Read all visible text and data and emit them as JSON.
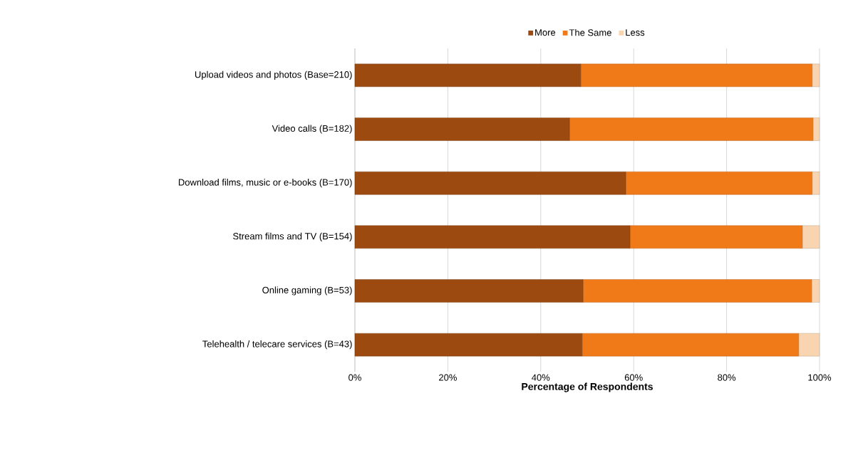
{
  "chart_data": {
    "type": "bar",
    "orientation": "horizontal",
    "stacked": true,
    "xlabel": "Percentage of Respondents",
    "categories": [
      "Upload videos and photos (Base=210)",
      "Video calls (B=182)",
      "Download films, music or e-books (B=170)",
      "Stream films and TV (B=154)",
      "Online gaming (B=53)",
      "Telehealth / telecare services (B=43)"
    ],
    "series": [
      {
        "name": "More",
        "color": "#9c4a10",
        "values": [
          48.6,
          46.2,
          58.3,
          59.2,
          49.1,
          48.9
        ]
      },
      {
        "name": "The Same",
        "color": "#f07a18",
        "values": [
          49.8,
          52.4,
          40.1,
          37.1,
          49.2,
          46.6
        ]
      },
      {
        "name": "Less",
        "color": "#f8d4b0",
        "values": [
          1.6,
          1.4,
          1.6,
          3.7,
          1.7,
          4.5
        ]
      }
    ],
    "xlim": [
      0,
      100
    ],
    "xticks": [
      {
        "value": 0,
        "label": "0%"
      },
      {
        "value": 20,
        "label": "20%"
      },
      {
        "value": 40,
        "label": "40%"
      },
      {
        "value": 60,
        "label": "60%"
      },
      {
        "value": 80,
        "label": "80%"
      },
      {
        "value": 100,
        "label": "100%"
      }
    ],
    "grid": "x",
    "legend": "top"
  }
}
